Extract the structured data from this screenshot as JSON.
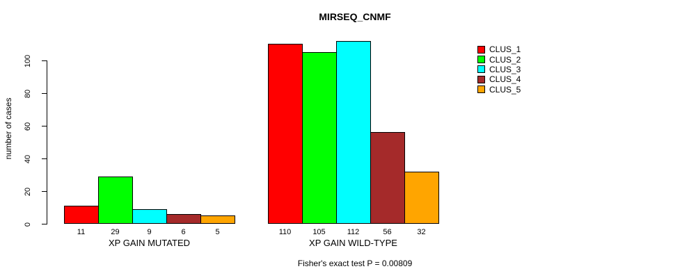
{
  "title": "MIRSEQ_CNMF",
  "y_axis": {
    "label": "number of cases",
    "ticks": [
      0,
      20,
      40,
      60,
      80,
      100
    ]
  },
  "footer": "Fisher's exact test P = 0.00809",
  "legend": {
    "items": [
      {
        "label": "CLUS_1",
        "color": "#FF0000"
      },
      {
        "label": "CLUS_2",
        "color": "#00FF00"
      },
      {
        "label": "CLUS_3",
        "color": "#00FFFF"
      },
      {
        "label": "CLUS_4",
        "color": "#A52A2A"
      },
      {
        "label": "CLUS_5",
        "color": "#FFA500"
      }
    ]
  },
  "chart_data": {
    "type": "bar",
    "title": "MIRSEQ_CNMF",
    "ylabel": "number of cases",
    "xlabel": "",
    "ylim": [
      0,
      113
    ],
    "yticks": [
      0,
      20,
      40,
      60,
      80,
      100
    ],
    "grid": false,
    "legend_position": "right",
    "series_labels": [
      "CLUS_1",
      "CLUS_2",
      "CLUS_3",
      "CLUS_4",
      "CLUS_5"
    ],
    "colors": [
      "#FF0000",
      "#00FF00",
      "#00FFFF",
      "#A52A2A",
      "#FFA500"
    ],
    "groups": [
      {
        "label": "XP GAIN MUTATED",
        "values": [
          11,
          29,
          9,
          6,
          5
        ]
      },
      {
        "label": "XP GAIN WILD-TYPE",
        "values": [
          110,
          105,
          112,
          56,
          32
        ]
      }
    ],
    "bar_value_labels_shown": true,
    "annotation": "Fisher's exact test P = 0.00809"
  }
}
